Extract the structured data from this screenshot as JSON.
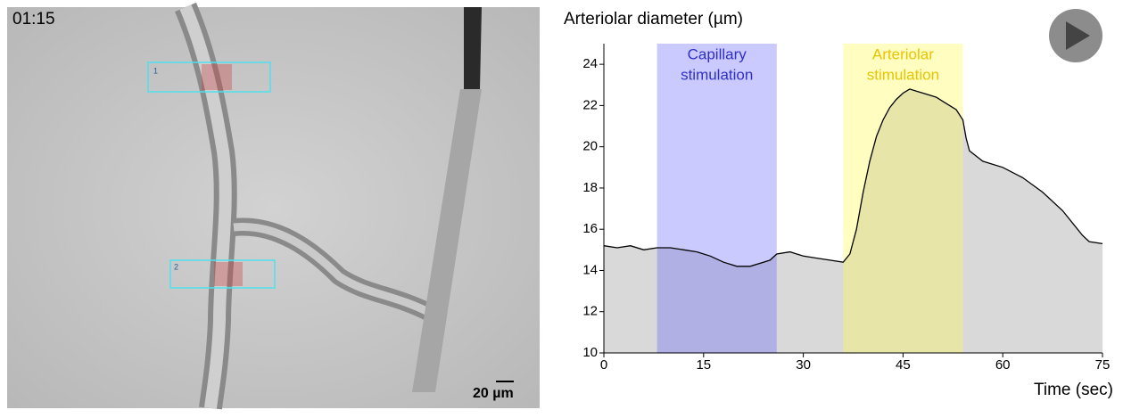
{
  "video": {
    "timestamp": "01:15",
    "roi_labels": [
      "1",
      "2"
    ],
    "scale_bar": "20 µm"
  },
  "chart_data": {
    "type": "area",
    "title": "Arteriolar diameter (µm)",
    "x_label": "Time (sec)",
    "x": [
      0,
      2,
      4,
      6,
      8,
      10,
      12,
      14,
      16,
      18,
      20,
      22,
      24,
      25,
      26,
      28,
      30,
      32,
      34,
      36,
      37,
      38,
      39,
      40,
      41,
      42,
      43,
      44,
      45,
      46,
      47,
      48,
      49,
      50,
      51,
      52,
      53,
      54,
      54.5,
      55,
      57,
      60,
      63,
      66,
      69,
      72,
      73,
      75
    ],
    "values": [
      15.2,
      15.1,
      15.2,
      15.0,
      15.1,
      15.1,
      15.0,
      14.9,
      14.7,
      14.4,
      14.2,
      14.2,
      14.4,
      14.5,
      14.8,
      14.9,
      14.7,
      14.6,
      14.5,
      14.4,
      14.8,
      16.0,
      17.8,
      19.3,
      20.5,
      21.3,
      21.9,
      22.3,
      22.6,
      22.8,
      22.7,
      22.6,
      22.5,
      22.4,
      22.2,
      22.0,
      21.8,
      21.3,
      20.4,
      19.8,
      19.3,
      19.0,
      18.5,
      17.8,
      16.9,
      15.7,
      15.4,
      15.3
    ],
    "color": "#000000",
    "fill_color": "#d9d9d9",
    "xlim": [
      0,
      75
    ],
    "xticks": [
      0,
      15,
      30,
      45,
      60,
      75
    ],
    "ylim": [
      10,
      25
    ],
    "yticks": [
      10,
      12,
      14,
      16,
      18,
      20,
      22,
      24
    ],
    "shaded_regions": [
      {
        "start": 8,
        "end": 26,
        "color": "rgba(90,90,255,0.32)",
        "label_lines": [
          "Capillary",
          "stimulation"
        ],
        "label_color": "#3030c8"
      },
      {
        "start": 36,
        "end": 54,
        "color": "rgba(255,250,90,0.38)",
        "label_lines": [
          "Arteriolar",
          "stimulation"
        ],
        "label_color": "#e8c400"
      }
    ]
  }
}
